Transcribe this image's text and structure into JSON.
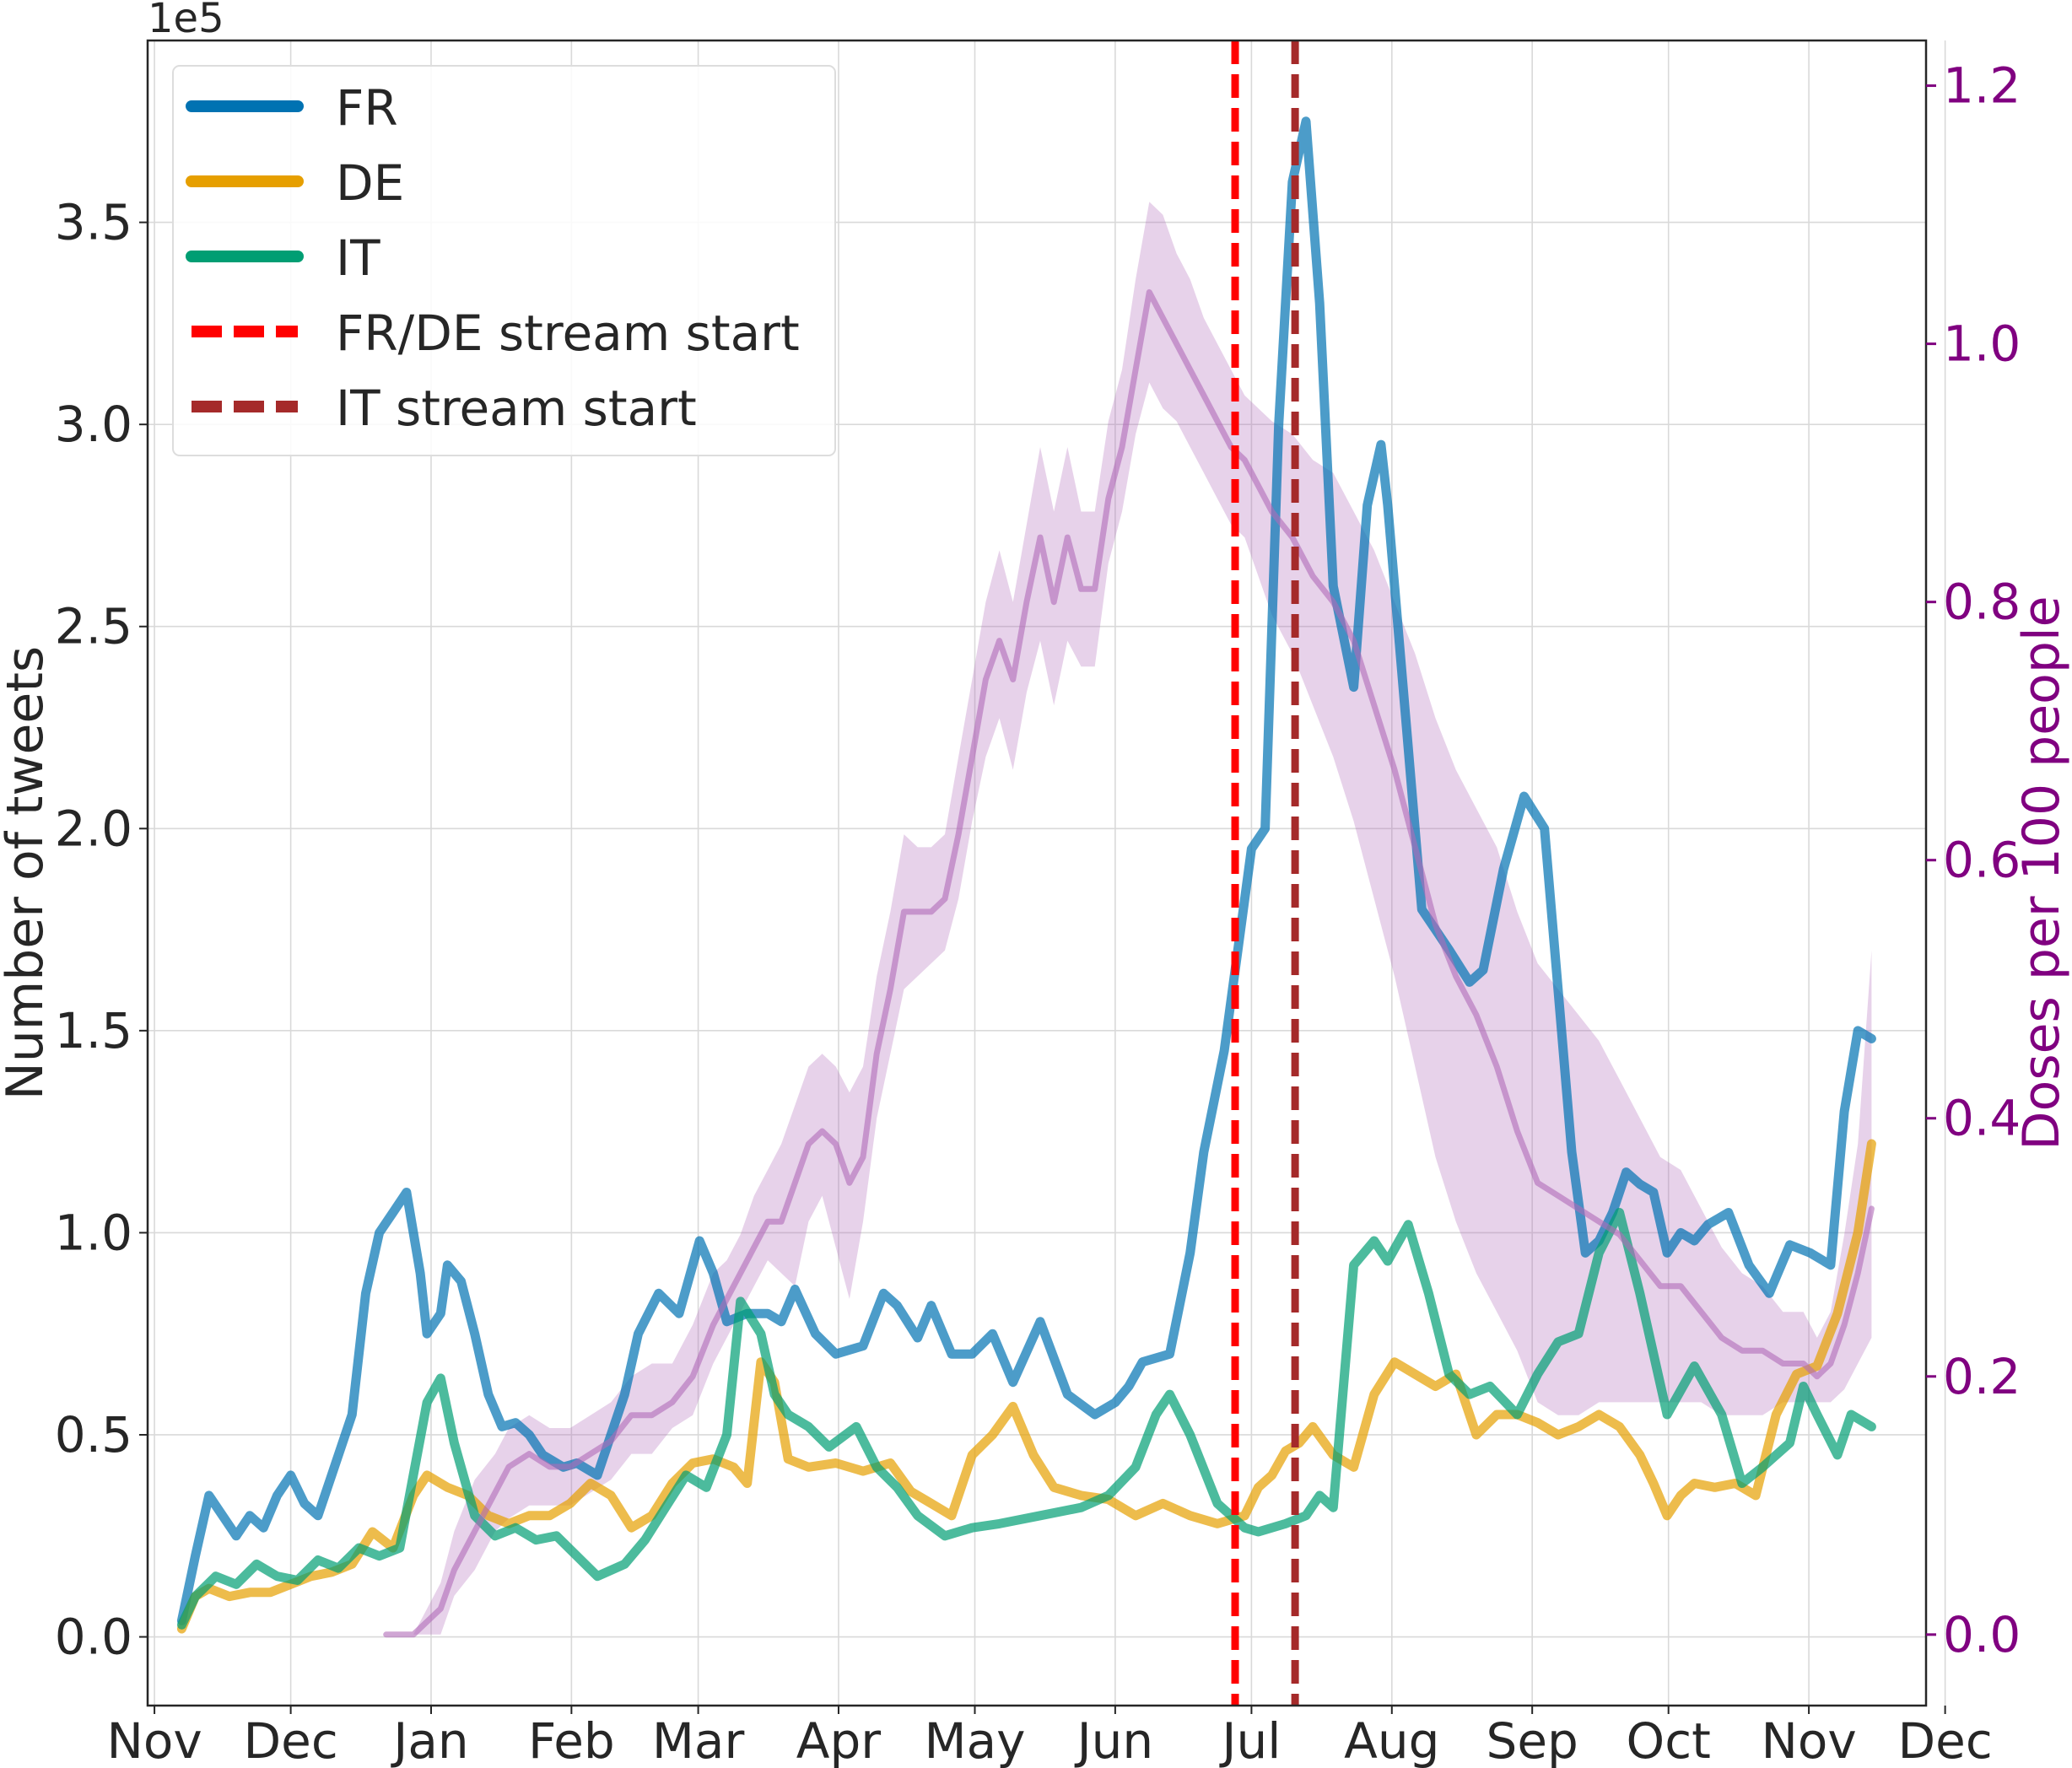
{
  "chart_data": {
    "type": "line",
    "title": "",
    "ylabel": "Number of tweets",
    "ylabel_right": "Doses per 100 people",
    "y_offset_label": "1e5",
    "ylim": [
      -0.17,
      3.95
    ],
    "ylim_right": [
      -0.055,
      1.235
    ],
    "xlim": [
      -0.05,
      13.0
    ],
    "x_ticks": [
      {
        "pos": 0.0,
        "label": "Nov"
      },
      {
        "pos": 1.0,
        "label": "Dec"
      },
      {
        "pos": 2.03,
        "label": "Jan"
      },
      {
        "pos": 3.06,
        "label": "Feb"
      },
      {
        "pos": 3.99,
        "label": "Mar"
      },
      {
        "pos": 5.02,
        "label": "Apr"
      },
      {
        "pos": 6.02,
        "label": "May"
      },
      {
        "pos": 7.05,
        "label": "Jun"
      },
      {
        "pos": 8.05,
        "label": "Jul"
      },
      {
        "pos": 9.08,
        "label": "Aug"
      },
      {
        "pos": 10.11,
        "label": "Sep"
      },
      {
        "pos": 11.11,
        "label": "Oct"
      },
      {
        "pos": 12.14,
        "label": "Nov"
      },
      {
        "pos": 13.14,
        "label": "Dec"
      }
    ],
    "y_ticks": [
      {
        "value": 0.0,
        "label": "0.0"
      },
      {
        "value": 0.5,
        "label": "0.5"
      },
      {
        "value": 1.0,
        "label": "1.0"
      },
      {
        "value": 1.5,
        "label": "1.5"
      },
      {
        "value": 2.0,
        "label": "2.0"
      },
      {
        "value": 2.5,
        "label": "2.5"
      },
      {
        "value": 3.0,
        "label": "3.0"
      },
      {
        "value": 3.5,
        "label": "3.5"
      }
    ],
    "y_ticks_right": [
      {
        "value": 0.0,
        "label": "0.0"
      },
      {
        "value": 0.2,
        "label": "0.2"
      },
      {
        "value": 0.4,
        "label": "0.4"
      },
      {
        "value": 0.6,
        "label": "0.6"
      },
      {
        "value": 0.8,
        "label": "0.8"
      },
      {
        "value": 1.0,
        "label": "1.0"
      },
      {
        "value": 1.2,
        "label": "1.2"
      }
    ],
    "series": [
      {
        "name": "FR",
        "color": "#0072b2",
        "axis": "left",
        "x": [
          0.2,
          0.3,
          0.4,
          0.5,
          0.6,
          0.7,
          0.8,
          0.9,
          1.0,
          1.1,
          1.2,
          1.3,
          1.45,
          1.55,
          1.65,
          1.75,
          1.85,
          1.95,
          2.0,
          2.1,
          2.15,
          2.25,
          2.35,
          2.45,
          2.55,
          2.65,
          2.75,
          2.85,
          3.0,
          3.1,
          3.25,
          3.35,
          3.45,
          3.55,
          3.7,
          3.85,
          4.0,
          4.1,
          4.2,
          4.35,
          4.5,
          4.6,
          4.7,
          4.85,
          5.0,
          5.2,
          5.35,
          5.45,
          5.6,
          5.7,
          5.85,
          6.0,
          6.15,
          6.3,
          6.5,
          6.7,
          6.9,
          7.05,
          7.15,
          7.25,
          7.45,
          7.6,
          7.7,
          7.85,
          7.95,
          8.05,
          8.15,
          8.25,
          8.35,
          8.45,
          8.55,
          8.65,
          8.8,
          8.9,
          9.0,
          9.05,
          9.2,
          9.3,
          9.4,
          9.5,
          9.65,
          9.75,
          9.9,
          10.05,
          10.2,
          10.3,
          10.4,
          10.5,
          10.6,
          10.7,
          10.8,
          10.9,
          11.0,
          11.1,
          11.2,
          11.3,
          11.4,
          11.55,
          11.7,
          11.85,
          12.0,
          12.15,
          12.3,
          12.4,
          12.5,
          12.6
        ],
        "y": [
          0.04,
          0.2,
          0.35,
          0.3,
          0.25,
          0.3,
          0.27,
          0.35,
          0.4,
          0.33,
          0.3,
          0.4,
          0.55,
          0.85,
          1.0,
          1.05,
          1.1,
          0.9,
          0.75,
          0.8,
          0.92,
          0.88,
          0.75,
          0.6,
          0.52,
          0.53,
          0.5,
          0.45,
          0.42,
          0.43,
          0.4,
          0.5,
          0.6,
          0.75,
          0.85,
          0.8,
          0.98,
          0.9,
          0.78,
          0.8,
          0.8,
          0.78,
          0.86,
          0.75,
          0.7,
          0.72,
          0.85,
          0.82,
          0.74,
          0.82,
          0.7,
          0.7,
          0.75,
          0.63,
          0.78,
          0.6,
          0.55,
          0.58,
          0.62,
          0.68,
          0.7,
          0.95,
          1.2,
          1.45,
          1.7,
          1.95,
          2.0,
          3.0,
          3.6,
          3.75,
          3.3,
          2.6,
          2.35,
          2.8,
          2.95,
          2.8,
          2.2,
          1.8,
          1.75,
          1.7,
          1.62,
          1.65,
          1.9,
          2.08,
          2.0,
          1.6,
          1.2,
          0.95,
          0.98,
          1.05,
          1.15,
          1.12,
          1.1,
          0.95,
          1.0,
          0.98,
          1.02,
          1.05,
          0.92,
          0.85,
          0.97,
          0.95,
          0.92,
          1.3,
          1.5,
          1.48
        ]
      },
      {
        "name": "DE",
        "color": "#e69f00",
        "axis": "left",
        "x": [
          0.2,
          0.3,
          0.4,
          0.55,
          0.7,
          0.85,
          1.0,
          1.15,
          1.3,
          1.45,
          1.6,
          1.75,
          1.9,
          2.0,
          2.15,
          2.3,
          2.45,
          2.6,
          2.75,
          2.9,
          3.05,
          3.2,
          3.35,
          3.5,
          3.65,
          3.8,
          3.95,
          4.1,
          4.25,
          4.35,
          4.45,
          4.55,
          4.65,
          4.8,
          5.0,
          5.2,
          5.4,
          5.55,
          5.7,
          5.85,
          6.0,
          6.15,
          6.3,
          6.45,
          6.6,
          6.8,
          7.0,
          7.2,
          7.4,
          7.6,
          7.8,
          8.0,
          8.1,
          8.2,
          8.3,
          8.4,
          8.5,
          8.65,
          8.8,
          8.95,
          9.1,
          9.25,
          9.4,
          9.55,
          9.7,
          9.85,
          10.0,
          10.15,
          10.3,
          10.45,
          10.6,
          10.75,
          10.9,
          11.0,
          11.1,
          11.2,
          11.3,
          11.45,
          11.6,
          11.75,
          11.9,
          12.05,
          12.2,
          12.35,
          12.5,
          12.6
        ],
        "y": [
          0.02,
          0.1,
          0.12,
          0.1,
          0.11,
          0.11,
          0.13,
          0.15,
          0.16,
          0.18,
          0.26,
          0.22,
          0.35,
          0.4,
          0.37,
          0.35,
          0.3,
          0.28,
          0.3,
          0.3,
          0.33,
          0.38,
          0.35,
          0.27,
          0.3,
          0.38,
          0.43,
          0.44,
          0.42,
          0.38,
          0.68,
          0.63,
          0.44,
          0.42,
          0.43,
          0.41,
          0.43,
          0.36,
          0.33,
          0.3,
          0.45,
          0.5,
          0.57,
          0.45,
          0.37,
          0.35,
          0.34,
          0.3,
          0.33,
          0.3,
          0.28,
          0.3,
          0.37,
          0.4,
          0.46,
          0.48,
          0.52,
          0.45,
          0.42,
          0.6,
          0.68,
          0.65,
          0.62,
          0.65,
          0.5,
          0.55,
          0.55,
          0.53,
          0.5,
          0.52,
          0.55,
          0.52,
          0.45,
          0.38,
          0.3,
          0.35,
          0.38,
          0.37,
          0.38,
          0.35,
          0.55,
          0.65,
          0.67,
          0.8,
          1.0,
          1.22
        ]
      },
      {
        "name": "IT",
        "color": "#009e73",
        "axis": "left",
        "x": [
          0.2,
          0.3,
          0.45,
          0.6,
          0.75,
          0.9,
          1.05,
          1.2,
          1.35,
          1.5,
          1.65,
          1.8,
          2.0,
          2.1,
          2.2,
          2.35,
          2.5,
          2.65,
          2.8,
          2.95,
          3.1,
          3.25,
          3.45,
          3.6,
          3.75,
          3.9,
          4.05,
          4.2,
          4.3,
          4.45,
          4.55,
          4.65,
          4.8,
          4.95,
          5.15,
          5.3,
          5.45,
          5.6,
          5.8,
          6.0,
          6.2,
          6.5,
          6.8,
          7.0,
          7.2,
          7.35,
          7.45,
          7.6,
          7.8,
          8.0,
          8.1,
          8.3,
          8.45,
          8.55,
          8.65,
          8.8,
          8.95,
          9.05,
          9.2,
          9.35,
          9.5,
          9.65,
          9.8,
          10.0,
          10.15,
          10.3,
          10.45,
          10.6,
          10.75,
          10.9,
          11.1,
          11.3,
          11.5,
          11.65,
          11.8,
          12.0,
          12.1,
          12.2,
          12.35,
          12.45,
          12.6
        ],
        "y": [
          0.03,
          0.1,
          0.15,
          0.13,
          0.18,
          0.15,
          0.14,
          0.19,
          0.17,
          0.22,
          0.2,
          0.22,
          0.58,
          0.64,
          0.48,
          0.3,
          0.25,
          0.27,
          0.24,
          0.25,
          0.2,
          0.15,
          0.18,
          0.24,
          0.32,
          0.4,
          0.37,
          0.5,
          0.83,
          0.75,
          0.6,
          0.55,
          0.52,
          0.47,
          0.52,
          0.42,
          0.37,
          0.3,
          0.25,
          0.27,
          0.28,
          0.3,
          0.32,
          0.35,
          0.42,
          0.55,
          0.6,
          0.5,
          0.33,
          0.27,
          0.26,
          0.28,
          0.3,
          0.35,
          0.32,
          0.92,
          0.98,
          0.93,
          1.02,
          0.85,
          0.65,
          0.6,
          0.62,
          0.55,
          0.65,
          0.73,
          0.75,
          0.95,
          1.05,
          0.85,
          0.55,
          0.67,
          0.55,
          0.38,
          0.42,
          0.48,
          0.62,
          0.55,
          0.45,
          0.55,
          0.52
        ]
      },
      {
        "name": "Doses per 100 people",
        "color": "#b06ab8",
        "axis": "right",
        "x": [
          1.7,
          1.8,
          1.9,
          2.0,
          2.1,
          2.2,
          2.35,
          2.5,
          2.6,
          2.75,
          2.9,
          3.05,
          3.2,
          3.35,
          3.5,
          3.65,
          3.8,
          3.95,
          4.1,
          4.2,
          4.3,
          4.4,
          4.5,
          4.6,
          4.7,
          4.8,
          4.9,
          5.0,
          5.1,
          5.2,
          5.3,
          5.4,
          5.5,
          5.6,
          5.7,
          5.8,
          5.9,
          6.0,
          6.1,
          6.2,
          6.3,
          6.4,
          6.5,
          6.6,
          6.7,
          6.8,
          6.9,
          7.0,
          7.1,
          7.2,
          7.3,
          7.4,
          7.5,
          7.6,
          7.7,
          7.8,
          7.9,
          8.0,
          8.1,
          8.2,
          8.35,
          8.5,
          8.65,
          8.8,
          8.95,
          9.1,
          9.25,
          9.4,
          9.55,
          9.7,
          9.85,
          10.0,
          10.15,
          10.3,
          10.45,
          10.6,
          10.75,
          10.9,
          11.05,
          11.2,
          11.35,
          11.5,
          11.65,
          11.8,
          11.95,
          12.1,
          12.2,
          12.3,
          12.4,
          12.5,
          12.6
        ],
        "y": [
          0.0,
          0.0,
          0.0,
          0.01,
          0.02,
          0.05,
          0.08,
          0.11,
          0.13,
          0.14,
          0.13,
          0.13,
          0.14,
          0.15,
          0.17,
          0.17,
          0.18,
          0.2,
          0.24,
          0.26,
          0.28,
          0.3,
          0.32,
          0.32,
          0.35,
          0.38,
          0.39,
          0.38,
          0.35,
          0.37,
          0.45,
          0.5,
          0.56,
          0.56,
          0.56,
          0.57,
          0.62,
          0.68,
          0.74,
          0.77,
          0.74,
          0.8,
          0.85,
          0.8,
          0.85,
          0.81,
          0.81,
          0.88,
          0.92,
          0.98,
          1.04,
          1.02,
          1.0,
          0.98,
          0.96,
          0.94,
          0.92,
          0.91,
          0.89,
          0.87,
          0.85,
          0.82,
          0.8,
          0.77,
          0.72,
          0.67,
          0.61,
          0.55,
          0.51,
          0.48,
          0.44,
          0.39,
          0.35,
          0.34,
          0.33,
          0.32,
          0.31,
          0.29,
          0.27,
          0.27,
          0.25,
          0.23,
          0.22,
          0.22,
          0.21,
          0.21,
          0.2,
          0.21,
          0.24,
          0.28,
          0.33
        ],
        "band_low": [
          0.0,
          0.0,
          0.0,
          0.0,
          0.0,
          0.03,
          0.05,
          0.08,
          0.09,
          0.1,
          0.1,
          0.1,
          0.11,
          0.12,
          0.14,
          0.14,
          0.16,
          0.17,
          0.21,
          0.23,
          0.25,
          0.27,
          0.29,
          0.28,
          0.27,
          0.32,
          0.34,
          0.3,
          0.26,
          0.32,
          0.4,
          0.45,
          0.5,
          0.51,
          0.52,
          0.53,
          0.57,
          0.63,
          0.68,
          0.71,
          0.67,
          0.73,
          0.77,
          0.72,
          0.77,
          0.75,
          0.75,
          0.83,
          0.87,
          0.93,
          0.97,
          0.95,
          0.94,
          0.92,
          0.9,
          0.88,
          0.86,
          0.85,
          0.82,
          0.79,
          0.76,
          0.72,
          0.68,
          0.63,
          0.57,
          0.51,
          0.44,
          0.37,
          0.32,
          0.28,
          0.25,
          0.22,
          0.18,
          0.17,
          0.17,
          0.18,
          0.18,
          0.18,
          0.18,
          0.18,
          0.18,
          0.17,
          0.17,
          0.17,
          0.18,
          0.18,
          0.18,
          0.18,
          0.19,
          0.21,
          0.23
        ],
        "band_high": [
          0.0,
          0.0,
          0.0,
          0.02,
          0.04,
          0.08,
          0.12,
          0.14,
          0.16,
          0.17,
          0.16,
          0.16,
          0.17,
          0.18,
          0.2,
          0.21,
          0.21,
          0.24,
          0.28,
          0.29,
          0.31,
          0.34,
          0.36,
          0.38,
          0.41,
          0.44,
          0.45,
          0.44,
          0.42,
          0.44,
          0.51,
          0.56,
          0.62,
          0.61,
          0.61,
          0.62,
          0.68,
          0.74,
          0.8,
          0.84,
          0.8,
          0.86,
          0.92,
          0.87,
          0.92,
          0.87,
          0.87,
          0.94,
          0.98,
          1.05,
          1.11,
          1.1,
          1.07,
          1.05,
          1.02,
          1.0,
          0.98,
          0.96,
          0.95,
          0.94,
          0.93,
          0.91,
          0.9,
          0.87,
          0.84,
          0.8,
          0.76,
          0.71,
          0.67,
          0.64,
          0.61,
          0.56,
          0.52,
          0.5,
          0.48,
          0.46,
          0.43,
          0.4,
          0.37,
          0.36,
          0.33,
          0.3,
          0.28,
          0.27,
          0.25,
          0.25,
          0.23,
          0.25,
          0.31,
          0.38,
          0.53
        ]
      }
    ],
    "vlines": [
      {
        "name": "FR/DE stream start",
        "x": 7.93,
        "color": "#ff0000"
      },
      {
        "name": "IT stream start",
        "x": 8.37,
        "color": "#a52a2a"
      }
    ],
    "legend": {
      "placement": "top-left",
      "entries": [
        {
          "label": "FR",
          "color": "#0072b2",
          "style": "solid"
        },
        {
          "label": "DE",
          "color": "#e69f00",
          "style": "solid"
        },
        {
          "label": "IT",
          "color": "#009e73",
          "style": "solid"
        },
        {
          "label": "FR/DE stream start",
          "color": "#ff0000",
          "style": "dashed"
        },
        {
          "label": "IT stream start",
          "color": "#a52a2a",
          "style": "dashed"
        }
      ]
    },
    "grid": true
  }
}
